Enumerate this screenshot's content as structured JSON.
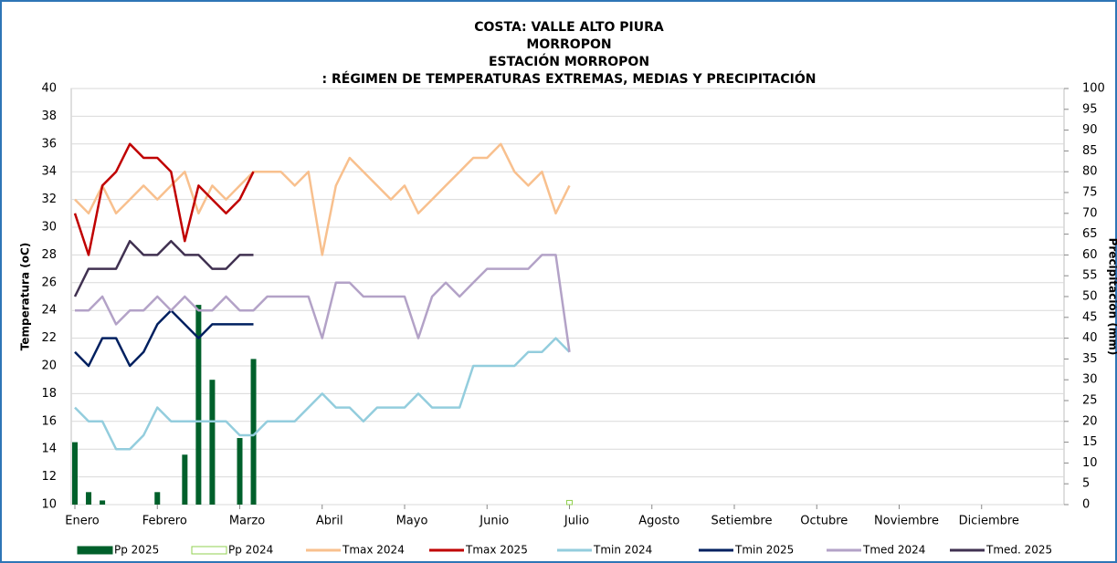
{
  "chart_data": {
    "type": "line",
    "title": [
      "COSTA: VALLE ALTO PIURA",
      "MORROPON",
      "ESTACIÓN MORROPON",
      ": RÉGIMEN DE TEMPERATURAS EXTREMAS, MEDIAS Y PRECIPITACIÓN"
    ],
    "y_label": "Temperatura (oC)",
    "y2_label": "Precipitación (mm)",
    "categories": [
      "Enero",
      null,
      null,
      null,
      null,
      null,
      "Febrero",
      null,
      null,
      null,
      null,
      null,
      "Marzo",
      null,
      null,
      null,
      null,
      null,
      "Abril",
      null,
      null,
      null,
      null,
      null,
      "Mayo",
      null,
      null,
      null,
      null,
      null,
      "Junio",
      null,
      null,
      null,
      null,
      null,
      "Julio",
      null,
      null,
      null,
      null,
      null,
      "Agosto",
      null,
      null,
      null,
      null,
      null,
      "Setiembre",
      null,
      null,
      null,
      null,
      null,
      "Octubre",
      null,
      null,
      null,
      null,
      null,
      "Noviembre",
      null,
      null,
      null,
      null,
      null,
      "Diciembre",
      null,
      null,
      null,
      null,
      null,
      null
    ],
    "ylim": [
      10,
      40
    ],
    "yticks": [
      10,
      12,
      14,
      16,
      18,
      20,
      22,
      24,
      26,
      28,
      30,
      32,
      34,
      36,
      38,
      40
    ],
    "y2lim": [
      0,
      100
    ],
    "y2ticks": [
      0,
      5,
      10,
      15,
      20,
      25,
      30,
      35,
      40,
      45,
      50,
      55,
      60,
      65,
      70,
      75,
      80,
      85,
      90,
      95,
      100
    ],
    "grid": true,
    "series": [
      {
        "name": "Pp 2025",
        "type": "bar",
        "axis": "y2",
        "color": "#00602b",
        "values": [
          15,
          3,
          1,
          0,
          0,
          0,
          3,
          0,
          12,
          48,
          30,
          0,
          16,
          35,
          null,
          null,
          null,
          null,
          null,
          null,
          null,
          null,
          null,
          null,
          null,
          null,
          null,
          null,
          null,
          null,
          null,
          null,
          null,
          null,
          null,
          null,
          null,
          null,
          null,
          null,
          null,
          null,
          null,
          null,
          null,
          null,
          null,
          null,
          null,
          null,
          null,
          null,
          null,
          null,
          null,
          null,
          null,
          null,
          null,
          null,
          null,
          null,
          null,
          null,
          null,
          null,
          null,
          null,
          null,
          null,
          null,
          null,
          null
        ]
      },
      {
        "name": "Pp 2024",
        "type": "bar",
        "axis": "y2",
        "color": "#92d050",
        "values": [
          0,
          0,
          0,
          0,
          0,
          0,
          0,
          0,
          0,
          0,
          0,
          0,
          0,
          0,
          0,
          0,
          0,
          0,
          0,
          0,
          0,
          0,
          0,
          0,
          0,
          0,
          0,
          0,
          0,
          0,
          0,
          0,
          0,
          0,
          0,
          0,
          1,
          null,
          null,
          null,
          null,
          null,
          null,
          null,
          null,
          null,
          null,
          null,
          null,
          null,
          null,
          null,
          null,
          null,
          null,
          null,
          null,
          null,
          null,
          null,
          null,
          null,
          null,
          null,
          null,
          null,
          null,
          null,
          null,
          null,
          null,
          null,
          null
        ]
      },
      {
        "name": "Tmax 2024",
        "type": "line",
        "color": "#f8c08e",
        "values": [
          32,
          31,
          33,
          31,
          32,
          33,
          32,
          33,
          34,
          31,
          33,
          32,
          33,
          34,
          34,
          34,
          33,
          34,
          28,
          33,
          35,
          34,
          33,
          32,
          33,
          31,
          32,
          33,
          34,
          35,
          35,
          36,
          34,
          33,
          34,
          31,
          33,
          null,
          null,
          null,
          null,
          null,
          null,
          null,
          null,
          null,
          null,
          null,
          null,
          null,
          null,
          null,
          null,
          null,
          null,
          null,
          null,
          null,
          null,
          null,
          null,
          null,
          null,
          null,
          null,
          null,
          null,
          null,
          null,
          null,
          null,
          null,
          null
        ]
      },
      {
        "name": "Tmax 2025",
        "type": "line",
        "color": "#c00000",
        "values": [
          31,
          28,
          33,
          34,
          36,
          35,
          35,
          34,
          29,
          33,
          32,
          31,
          32,
          34,
          null,
          null,
          null,
          null,
          null,
          null,
          null,
          null,
          null,
          null,
          null,
          null,
          null,
          null,
          null,
          null,
          null,
          null,
          null,
          null,
          null,
          null,
          null,
          null,
          null,
          null,
          null,
          null,
          null,
          null,
          null,
          null,
          null,
          null,
          null,
          null,
          null,
          null,
          null,
          null,
          null,
          null,
          null,
          null,
          null,
          null,
          null,
          null,
          null,
          null,
          null,
          null,
          null,
          null,
          null,
          null,
          null,
          null,
          null
        ]
      },
      {
        "name": "Tmin 2024",
        "type": "line",
        "color": "#93cddd",
        "values": [
          17,
          16,
          16,
          14,
          14,
          15,
          17,
          16,
          16,
          16,
          16,
          16,
          15,
          15,
          16,
          16,
          16,
          17,
          18,
          17,
          17,
          16,
          17,
          17,
          17,
          18,
          17,
          17,
          17,
          20,
          20,
          20,
          20,
          21,
          21,
          22,
          21,
          null,
          null,
          null,
          null,
          null,
          null,
          null,
          null,
          null,
          null,
          null,
          null,
          null,
          null,
          null,
          null,
          null,
          null,
          null,
          null,
          null,
          null,
          null,
          null,
          null,
          null,
          null,
          null,
          null,
          null,
          null,
          null,
          null,
          null,
          null,
          null
        ]
      },
      {
        "name": "Tmin 2025",
        "type": "line",
        "color": "#002060",
        "values": [
          21,
          20,
          22,
          22,
          20,
          21,
          23,
          24,
          23,
          22,
          23,
          23,
          23,
          23,
          null,
          null,
          null,
          null,
          null,
          null,
          null,
          null,
          null,
          null,
          null,
          null,
          null,
          null,
          null,
          null,
          null,
          null,
          null,
          null,
          null,
          null,
          null,
          null,
          null,
          null,
          null,
          null,
          null,
          null,
          null,
          null,
          null,
          null,
          null,
          null,
          null,
          null,
          null,
          null,
          null,
          null,
          null,
          null,
          null,
          null,
          null,
          null,
          null,
          null,
          null,
          null,
          null,
          null,
          null,
          null,
          null,
          null,
          null
        ]
      },
      {
        "name": "Tmed 2024",
        "type": "line",
        "color": "#b3a2c7",
        "values": [
          24,
          24,
          25,
          23,
          24,
          24,
          25,
          24,
          25,
          24,
          24,
          25,
          24,
          24,
          25,
          25,
          25,
          25,
          22,
          26,
          26,
          25,
          25,
          25,
          25,
          22,
          25,
          26,
          25,
          26,
          27,
          27,
          27,
          27,
          28,
          28,
          21,
          null,
          null,
          null,
          null,
          null,
          null,
          null,
          null,
          null,
          null,
          null,
          null,
          null,
          null,
          null,
          null,
          null,
          null,
          null,
          null,
          null,
          null,
          null,
          null,
          null,
          null,
          null,
          null,
          null,
          null,
          null,
          null,
          null,
          null,
          null,
          null
        ]
      },
      {
        "name": "Tmed. 2025",
        "type": "line",
        "color": "#403151",
        "values": [
          25,
          27,
          27,
          27,
          29,
          28,
          28,
          29,
          28,
          28,
          27,
          27,
          28,
          28,
          null,
          null,
          null,
          null,
          null,
          null,
          null,
          null,
          null,
          null,
          null,
          null,
          null,
          null,
          null,
          null,
          null,
          null,
          null,
          null,
          null,
          null,
          null,
          null,
          null,
          null,
          null,
          null,
          null,
          null,
          null,
          null,
          null,
          null,
          null,
          null,
          null,
          null,
          null,
          null,
          null,
          null,
          null,
          null,
          null,
          null,
          null,
          null,
          null,
          null,
          null,
          null,
          null,
          null,
          null,
          null,
          null,
          null,
          null
        ]
      }
    ]
  }
}
